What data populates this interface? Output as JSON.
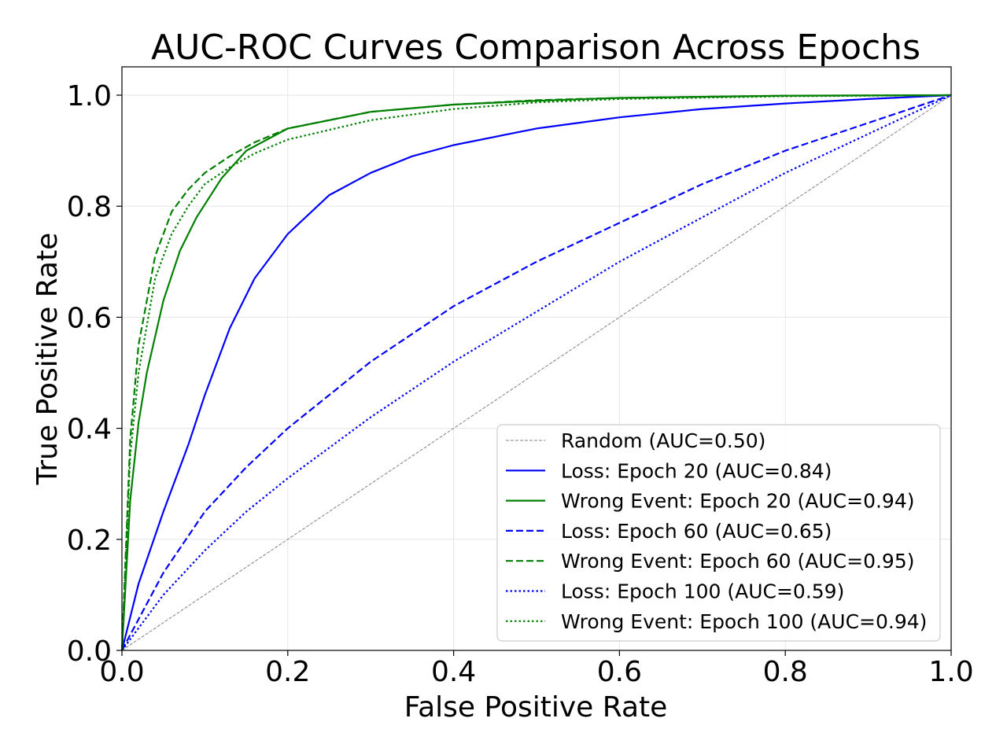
{
  "chart_data": {
    "type": "line",
    "title": "AUC-ROC Curves Comparison Across Epochs",
    "xlabel": "False Positive Rate",
    "ylabel": "True Positive Rate",
    "xlim": [
      0.0,
      1.0
    ],
    "ylim": [
      0.0,
      1.0
    ],
    "xticks": [
      0.0,
      0.2,
      0.4,
      0.6,
      0.8,
      1.0
    ],
    "yticks": [
      0.0,
      0.2,
      0.4,
      0.6,
      0.8,
      1.0
    ],
    "xtick_labels": [
      "0.0",
      "0.2",
      "0.4",
      "0.6",
      "0.8",
      "1.0"
    ],
    "ytick_labels": [
      "0.0",
      "0.2",
      "0.4",
      "0.6",
      "0.8",
      "1.0"
    ],
    "grid": true,
    "legend_position": "lower-right",
    "series": [
      {
        "name": "Random (AUC=0.50)",
        "color": "#808080",
        "dash": "dashed-thin",
        "x": [
          0.0,
          1.0
        ],
        "y": [
          0.0,
          1.0
        ]
      },
      {
        "name": "Loss: Epoch 20 (AUC=0.84)",
        "color": "#0000ff",
        "dash": "solid",
        "x": [
          0.0,
          0.02,
          0.05,
          0.08,
          0.1,
          0.13,
          0.16,
          0.2,
          0.25,
          0.3,
          0.35,
          0.4,
          0.5,
          0.6,
          0.7,
          0.8,
          0.9,
          1.0
        ],
        "y": [
          0.0,
          0.12,
          0.25,
          0.37,
          0.46,
          0.58,
          0.67,
          0.75,
          0.82,
          0.86,
          0.89,
          0.91,
          0.94,
          0.96,
          0.975,
          0.985,
          0.993,
          1.0
        ]
      },
      {
        "name": "Wrong Event: Epoch 20 (AUC=0.94)",
        "color": "#008000",
        "dash": "solid",
        "x": [
          0.0,
          0.01,
          0.02,
          0.03,
          0.05,
          0.07,
          0.09,
          0.12,
          0.15,
          0.2,
          0.3,
          0.4,
          0.5,
          0.6,
          0.8,
          1.0
        ],
        "y": [
          0.0,
          0.27,
          0.41,
          0.5,
          0.63,
          0.72,
          0.78,
          0.85,
          0.9,
          0.94,
          0.97,
          0.983,
          0.99,
          0.995,
          0.999,
          1.0
        ]
      },
      {
        "name": "Loss: Epoch 60 (AUC=0.65)",
        "color": "#0000ff",
        "dash": "dashed",
        "x": [
          0.0,
          0.05,
          0.1,
          0.15,
          0.2,
          0.3,
          0.4,
          0.5,
          0.6,
          0.7,
          0.8,
          0.9,
          1.0
        ],
        "y": [
          0.0,
          0.14,
          0.25,
          0.33,
          0.4,
          0.52,
          0.62,
          0.7,
          0.77,
          0.84,
          0.9,
          0.95,
          1.0
        ]
      },
      {
        "name": "Wrong Event: Epoch 60 (AUC=0.95)",
        "color": "#008000",
        "dash": "dashed",
        "x": [
          0.0,
          0.01,
          0.02,
          0.04,
          0.06,
          0.08,
          0.1,
          0.13,
          0.16,
          0.2,
          0.3,
          0.4,
          0.5,
          0.6,
          0.8,
          1.0
        ],
        "y": [
          0.0,
          0.38,
          0.55,
          0.71,
          0.79,
          0.83,
          0.86,
          0.89,
          0.915,
          0.94,
          0.97,
          0.983,
          0.991,
          0.995,
          0.999,
          1.0
        ]
      },
      {
        "name": "Loss: Epoch 100 (AUC=0.59)",
        "color": "#0000ff",
        "dash": "dotted",
        "x": [
          0.0,
          0.05,
          0.1,
          0.15,
          0.2,
          0.3,
          0.4,
          0.5,
          0.6,
          0.7,
          0.8,
          0.9,
          1.0
        ],
        "y": [
          0.0,
          0.1,
          0.18,
          0.25,
          0.31,
          0.42,
          0.52,
          0.61,
          0.7,
          0.78,
          0.86,
          0.93,
          1.0
        ]
      },
      {
        "name": "Wrong Event: Epoch 100 (AUC=0.94)",
        "color": "#008000",
        "dash": "dotted",
        "x": [
          0.0,
          0.01,
          0.02,
          0.04,
          0.06,
          0.08,
          0.1,
          0.13,
          0.16,
          0.2,
          0.3,
          0.4,
          0.5,
          0.6,
          0.8,
          1.0
        ],
        "y": [
          0.0,
          0.35,
          0.5,
          0.67,
          0.75,
          0.8,
          0.84,
          0.87,
          0.895,
          0.92,
          0.955,
          0.975,
          0.987,
          0.993,
          0.998,
          1.0
        ]
      }
    ]
  }
}
